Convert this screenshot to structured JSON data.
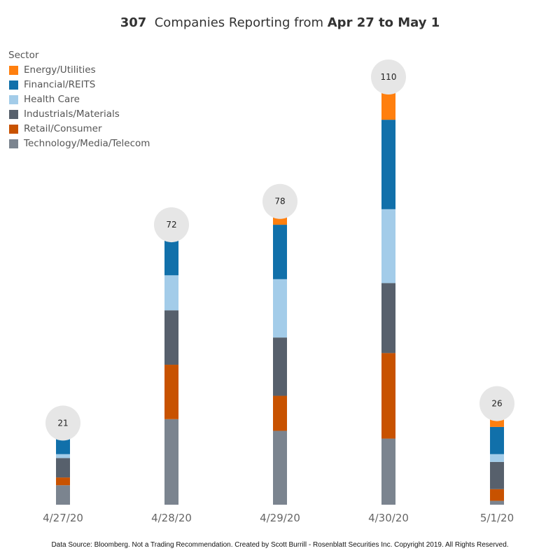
{
  "title": {
    "count": "307",
    "middle": "Companies Reporting from",
    "range": "Apr 27 to May 1"
  },
  "legend": {
    "title": "Sector",
    "items": [
      {
        "label": "Energy/Utilities",
        "color": "#FF7F0E"
      },
      {
        "label": "Financial/REITS",
        "color": "#1170AA"
      },
      {
        "label": "Health Care",
        "color": "#A3CCE9"
      },
      {
        "label": "Industrials/Materials",
        "color": "#57606C"
      },
      {
        "label": "Retail/Consumer",
        "color": "#C85200"
      },
      {
        "label": "Technology/Media/Telecom",
        "color": "#7B848F"
      }
    ]
  },
  "chart_data": {
    "type": "bar",
    "stacked": true,
    "title": "307 Companies Reporting from Apr 27 to May 1",
    "xlabel": "",
    "ylabel": "",
    "ylim": [
      0,
      110
    ],
    "grid": false,
    "legend_position": "top-left",
    "categories": [
      "4/27/20",
      "4/28/20",
      "4/29/20",
      "4/30/20",
      "5/1/20"
    ],
    "totals": [
      "21",
      "72",
      "78",
      "110",
      "26"
    ],
    "series": [
      {
        "name": "Technology/Media/Telecom",
        "color": "#7B848F",
        "values": [
          5,
          22,
          19,
          17,
          1
        ]
      },
      {
        "name": "Retail/Consumer",
        "color": "#C85200",
        "values": [
          2,
          14,
          9,
          22,
          3
        ]
      },
      {
        "name": "Industrials/Materials",
        "color": "#57606C",
        "values": [
          5,
          14,
          15,
          18,
          7
        ]
      },
      {
        "name": "Health Care",
        "color": "#A3CCE9",
        "values": [
          1,
          9,
          15,
          19,
          2
        ]
      },
      {
        "name": "Financial/REITS",
        "color": "#1170AA",
        "values": [
          8,
          13,
          14,
          23,
          7
        ]
      },
      {
        "name": "Energy/Utilities",
        "color": "#FF7F0E",
        "values": [
          0,
          0,
          6,
          11,
          6
        ]
      }
    ]
  },
  "footer": "Data Source: Bloomberg. Not a Trading Recommendation. Created by Scott Burrill - Rosenblatt Securities Inc. Copyright 2019. All Rights Reserved."
}
